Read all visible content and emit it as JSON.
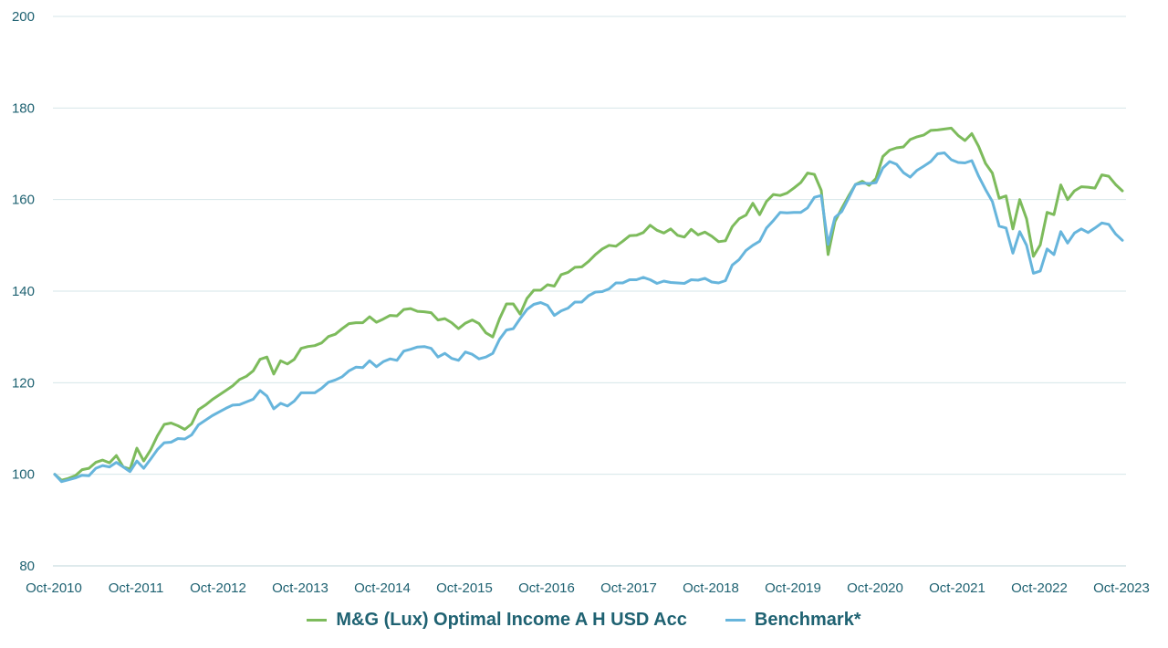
{
  "chart_data": {
    "type": "line",
    "title": "",
    "xlabel": "",
    "ylabel": "",
    "ylim": [
      80,
      200
    ],
    "yticks": [
      "80",
      "100",
      "120",
      "140",
      "160",
      "180",
      "200"
    ],
    "xticks": [
      "Oct-2010",
      "Oct-2011",
      "Oct-2012",
      "Oct-2013",
      "Oct-2014",
      "Oct-2015",
      "Oct-2016",
      "Oct-2017",
      "Oct-2018",
      "Oct-2019",
      "Oct-2020",
      "Oct-2021",
      "Oct-2022",
      "Oct-2023"
    ],
    "x_start": "Oct-2010",
    "x_end": "Oct-2023",
    "grid": "horizontal",
    "legend_position": "bottom",
    "series": [
      {
        "name": "M&G (Lux) Optimal Income A H USD Acc",
        "color": "#7dbb5c",
        "values": [
          100.0,
          98.7,
          99.1,
          99.7,
          101.0,
          101.3,
          102.6,
          103.1,
          102.5,
          104.1,
          101.6,
          101.1,
          105.7,
          102.9,
          105.3,
          108.4,
          110.9,
          111.2,
          110.6,
          109.8,
          111.0,
          114.1,
          115.1,
          116.3,
          117.3,
          118.3,
          119.3,
          120.7,
          121.4,
          122.6,
          125.1,
          125.6,
          121.9,
          124.8,
          124.1,
          125.1,
          127.5,
          127.9,
          128.1,
          128.7,
          130.1,
          130.6,
          131.8,
          132.9,
          133.1,
          133.1,
          134.4,
          133.2,
          133.9,
          134.7,
          134.6,
          136.0,
          136.2,
          135.6,
          135.5,
          135.3,
          133.7,
          134.0,
          133.1,
          131.8,
          133.0,
          133.7,
          132.9,
          130.9,
          130.0,
          134.0,
          137.2,
          137.2,
          135.0,
          138.4,
          140.2,
          140.2,
          141.4,
          141.1,
          143.6,
          144.1,
          145.2,
          145.3,
          146.5,
          148.0,
          149.2,
          150.0,
          149.8,
          150.9,
          152.1,
          152.2,
          152.8,
          154.4,
          153.3,
          152.7,
          153.6,
          152.2,
          151.8,
          153.5,
          152.3,
          152.9,
          152.0,
          150.8,
          151.0,
          154.1,
          155.8,
          156.6,
          159.2,
          156.7,
          159.6,
          161.1,
          160.9,
          161.4,
          162.5,
          163.7,
          165.8,
          165.5,
          162.0,
          148.0,
          155.2,
          158.1,
          160.8,
          163.3,
          164.0,
          163.1,
          164.6,
          169.4,
          170.8,
          171.3,
          171.5,
          173.1,
          173.7,
          174.1,
          175.1,
          175.2,
          175.4,
          175.6,
          174.0,
          172.9,
          174.4,
          171.6,
          167.9,
          165.8,
          160.3,
          160.8,
          153.6,
          160.0,
          155.8,
          147.6,
          150.1,
          157.2,
          156.7,
          163.2,
          160.0,
          161.9,
          162.8,
          162.7,
          162.5,
          165.4,
          165.1,
          163.3,
          161.9
        ]
      },
      {
        "name": "Benchmark*",
        "color": "#67b5dc",
        "values": [
          100.0,
          98.4,
          98.8,
          99.2,
          99.8,
          99.7,
          101.3,
          101.9,
          101.6,
          102.6,
          101.6,
          100.6,
          102.9,
          101.3,
          103.3,
          105.4,
          106.9,
          107.0,
          107.8,
          107.7,
          108.6,
          110.8,
          111.8,
          112.8,
          113.6,
          114.4,
          115.1,
          115.2,
          115.8,
          116.4,
          118.3,
          117.1,
          114.3,
          115.5,
          114.9,
          116.0,
          117.8,
          117.8,
          117.8,
          118.8,
          120.1,
          120.6,
          121.3,
          122.6,
          123.4,
          123.3,
          124.8,
          123.5,
          124.6,
          125.2,
          124.9,
          126.9,
          127.3,
          127.8,
          127.9,
          127.5,
          125.6,
          126.4,
          125.3,
          124.9,
          126.7,
          126.2,
          125.2,
          125.6,
          126.4,
          129.5,
          131.5,
          131.8,
          134.0,
          136.0,
          137.1,
          137.5,
          136.9,
          134.7,
          135.7,
          136.3,
          137.6,
          137.6,
          139.0,
          139.8,
          139.9,
          140.5,
          141.8,
          141.8,
          142.5,
          142.5,
          143.0,
          142.5,
          141.7,
          142.2,
          141.9,
          141.8,
          141.7,
          142.5,
          142.4,
          142.8,
          142.0,
          141.8,
          142.3,
          145.7,
          146.9,
          148.9,
          150.0,
          150.9,
          153.8,
          155.4,
          157.2,
          157.1,
          157.2,
          157.2,
          158.2,
          160.5,
          160.9,
          150.2,
          156.1,
          157.4,
          160.3,
          163.3,
          163.6,
          163.5,
          163.7,
          166.9,
          168.3,
          167.7,
          165.9,
          164.9,
          166.4,
          167.3,
          168.3,
          170.0,
          170.2,
          168.7,
          168.1,
          168.0,
          168.5,
          165.1,
          162.2,
          159.6,
          154.2,
          153.8,
          148.3,
          153.0,
          150.0,
          143.9,
          144.4,
          149.2,
          148.0,
          153.0,
          150.5,
          152.7,
          153.6,
          152.8,
          153.8,
          154.9,
          154.6,
          152.5,
          151.1
        ]
      }
    ]
  }
}
